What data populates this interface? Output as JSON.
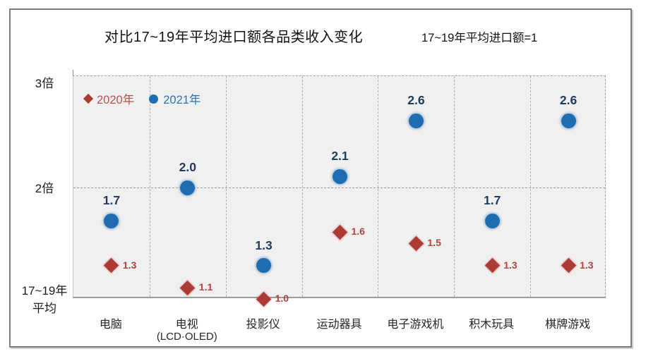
{
  "header": {
    "title": "对比17~19年平均进口额各品类收入变化",
    "note": "17~19年平均进口额=1"
  },
  "legend": {
    "items": [
      {
        "label": "2020年",
        "marker": "diamond-icon",
        "color": "#B5534E"
      },
      {
        "label": "2021年",
        "marker": "circle-icon",
        "color": "#2E75B6"
      }
    ]
  },
  "axis": {
    "ticks": [
      {
        "label": "3倍",
        "value": 3
      },
      {
        "label": "2倍",
        "value": 2
      }
    ],
    "baseline": {
      "line1": "17~19年",
      "line2": "平均",
      "value": 1
    }
  },
  "chart_data": {
    "type": "scatter",
    "title": "对比17~19年平均进口额各品类收入变化",
    "note": "17~19年平均进口额=1",
    "categories": [
      "电脑",
      "电视",
      "投影仪",
      "运动器具",
      "电子游戏机",
      "积木玩具",
      "棋牌游戏"
    ],
    "category_sublabels": [
      "",
      "(LCD·OLED)",
      "",
      "",
      "",
      "",
      ""
    ],
    "series": [
      {
        "name": "2020年",
        "marker": "diamond",
        "color": "#AD3B33",
        "label_color": "#B0443C",
        "values": [
          1.3,
          1.1,
          1.0,
          1.6,
          1.5,
          1.3,
          1.3
        ]
      },
      {
        "name": "2021年",
        "marker": "circle",
        "color": "#1E6CB2",
        "label_color": "#1F3A5E",
        "values": [
          1.7,
          2.0,
          1.3,
          2.1,
          2.6,
          1.7,
          2.6
        ]
      }
    ],
    "y_axis": {
      "tick_labels": [
        "3倍",
        "2倍",
        "17~19年平均"
      ],
      "tick_values": [
        3,
        2,
        1
      ],
      "ylim": [
        1,
        3
      ]
    },
    "gridlines": {
      "horizontal_values": [
        2
      ],
      "vertical": "category-boundaries",
      "style": "dashed"
    },
    "legend_position": "top-left-inside",
    "plot_background": "#F0F0F0"
  }
}
